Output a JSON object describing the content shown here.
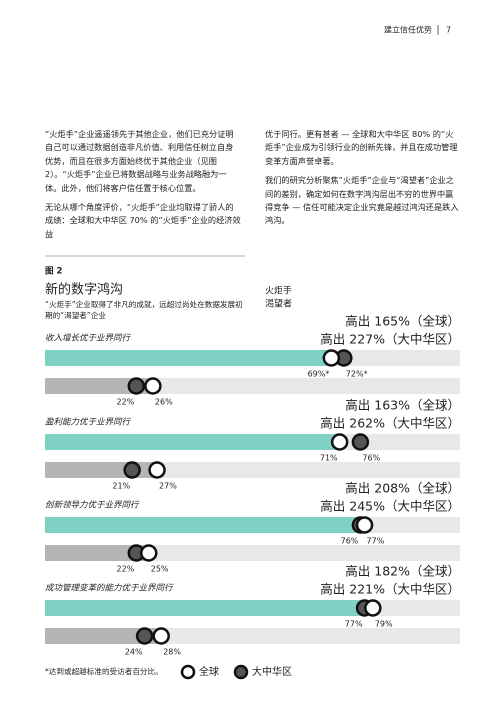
{
  "header": {
    "title": "建立信任优势",
    "page": "7"
  },
  "body": {
    "left": [
      "“火炬手”企业遥遥领先于其他企业，他们已充分证明自己可以通过数据创造非凡价值、利用信任树立自身优势，而且在很多方面始终优于其他企业（见图 2）。“火炬手”企业已将数据战略与业务战略融为一体。此外，他们将客户信任置于核心位置。",
      "无论从哪个角度评价，“火炬手”企业均取得了骄人的成绩：全球和大中华区 70% 的“火炬手”企业的经济效益"
    ],
    "right": [
      "优于同行。更有甚者 — 全球和大中华区 80% 的“火炬手”企业成为引领行业的创新先锋，并且在成功管理变革方面声誉卓著。",
      "我们的研究分析聚焦“火炬手”企业与“渴望者”企业之间的差别，确定如何在数字鸿沟层出不穷的世界中赢得竞争 — 信任可能决定企业究竟是越过鸿沟还是跌入鸿沟。"
    ]
  },
  "figure": {
    "label": "图 2",
    "title": "新的数字鸿沟",
    "subtitle": "“火炬手”企业取得了非凡的成就，远超过尚处在数据发展初期的“渴望者”企业",
    "series": [
      {
        "name": "火炬手",
        "color": "#7fd1c4"
      },
      {
        "name": "渴望者",
        "color": "#b5b5b5"
      }
    ],
    "highlight_color": "#e07a22",
    "xlim": [
      0,
      100
    ],
    "groups": [
      {
        "label": "收入增长优于业界同行",
        "ratio_global": "高出 165%（全球）",
        "ratio_gc": "高出 227%（大中华区）",
        "torchbearers": {
          "global": 69,
          "gc": 72,
          "global_label": "69%*",
          "gc_label": "72%*"
        },
        "aspirants": {
          "global": 26,
          "gc": 22,
          "global_label": "26%",
          "gc_label": "22%"
        }
      },
      {
        "label": "盈利能力优于业界同行",
        "ratio_global": "高出 163%（全球）",
        "ratio_gc": "高出 262%（大中华区）",
        "torchbearers": {
          "global": 71,
          "gc": 76,
          "global_label": "71%",
          "gc_label": "76%"
        },
        "aspirants": {
          "global": 27,
          "gc": 21,
          "global_label": "27%",
          "gc_label": "21%"
        }
      },
      {
        "label": "创新领导力优于业界同行",
        "ratio_global": "高出 208%（全球）",
        "ratio_gc": "高出 245%（大中华区）",
        "torchbearers": {
          "global": 77,
          "gc": 76,
          "global_label": "77%",
          "gc_label": "76%"
        },
        "aspirants": {
          "global": 25,
          "gc": 22,
          "global_label": "25%",
          "gc_label": "22%"
        }
      },
      {
        "label": "成功管理变革的能力优于业界同行",
        "ratio_global": "高出 182%（全球）",
        "ratio_gc": "高出 221%（大中华区）",
        "torchbearers": {
          "global": 79,
          "gc": 77,
          "global_label": "79%",
          "gc_label": "77%"
        },
        "aspirants": {
          "global": 28,
          "gc": 24,
          "global_label": "28%",
          "gc_label": "24%"
        }
      }
    ],
    "footnote": "*达到或超越标准的受访者百分比。",
    "legend": {
      "global": "全球",
      "gc": "大中华区"
    }
  }
}
